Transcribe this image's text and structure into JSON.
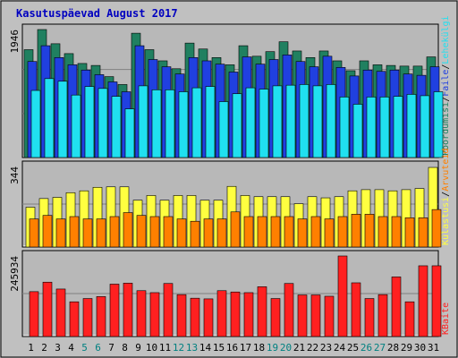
{
  "chart_data": {
    "type": "bar",
    "title": "Kasutuspäevad August 2017",
    "days": [
      "1",
      "2",
      "3",
      "4",
      "5",
      "6",
      "7",
      "8",
      "9",
      "10",
      "11",
      "12",
      "13",
      "14",
      "15",
      "16",
      "17",
      "18",
      "19",
      "20",
      "21",
      "22",
      "23",
      "24",
      "25",
      "26",
      "27",
      "28",
      "29",
      "30",
      "31"
    ],
    "weekend_days": [
      "5",
      "6",
      "12",
      "13",
      "19",
      "20",
      "26",
      "27"
    ],
    "colors": {
      "background": "#c0c0c0",
      "plot_bg": "#b0b0b0",
      "title": "#0000c0",
      "weekday_label": "#000000",
      "weekend_label": "#008080",
      "visits": "#208060",
      "pages": "#2040e0",
      "files": "#20e0f0",
      "hits": "#ffff40",
      "sites": "#ff8000",
      "kbytes": "#ff2020"
    },
    "panels": [
      {
        "ymax_label": "1946",
        "ymax": 1946,
        "legend": [
          {
            "text": "Pöördumisi",
            "color": "#208060"
          },
          {
            "text": "/",
            "color": "#000000"
          },
          {
            "text": "Faile",
            "color": "#2040e0"
          },
          {
            "text": "/",
            "color": "#000000"
          },
          {
            "text": "Lehekülgi",
            "color": "#20e0f0"
          }
        ],
        "series": [
          {
            "name": "Pöördumisi",
            "color": "#208060",
            "values": [
              1640,
              1946,
              1730,
              1580,
              1430,
              1400,
              1230,
              1110,
              1890,
              1640,
              1470,
              1350,
              1740,
              1650,
              1520,
              1410,
              1700,
              1540,
              1610,
              1760,
              1620,
              1520,
              1620,
              1470,
              1320,
              1470,
              1410,
              1400,
              1390,
              1390,
              1530
            ]
          },
          {
            "name": "Faile",
            "color": "#2040e0",
            "values": [
              1460,
              1700,
              1520,
              1410,
              1330,
              1260,
              1150,
              1000,
              1700,
              1490,
              1380,
              1270,
              1520,
              1470,
              1420,
              1300,
              1530,
              1420,
              1490,
              1560,
              1460,
              1380,
              1540,
              1370,
              1240,
              1330,
              1310,
              1330,
              1270,
              1250,
              1380
            ]
          },
          {
            "name": "Lehekülgi",
            "color": "#20e0f0",
            "values": [
              1020,
              1200,
              1160,
              950,
              1080,
              1050,
              930,
              740,
              1090,
              1030,
              1030,
              1000,
              1060,
              1080,
              850,
              970,
              1060,
              1040,
              1090,
              1100,
              1110,
              1090,
              1110,
              920,
              810,
              920,
              920,
              930,
              960,
              940,
              1000
            ]
          }
        ]
      },
      {
        "ymax_label": "344",
        "ymax": 344,
        "legend": [
          {
            "text": "Külastusi",
            "color": "#ffff40"
          },
          {
            "text": "/",
            "color": "#000000"
          },
          {
            "text": "Arvuteid",
            "color": "#ff8000"
          }
        ],
        "series": [
          {
            "name": "Külastusi",
            "color": "#ffff40",
            "values": [
              170,
              207,
              212,
              232,
              240,
              255,
              257,
              257,
              200,
              220,
              200,
              220,
              220,
              200,
              200,
              259,
              220,
              215,
              215,
              215,
              185,
              215,
              210,
              215,
              240,
              245,
              245,
              240,
              245,
              250,
              340
            ]
          },
          {
            "name": "Arvuteid",
            "color": "#ff8000",
            "values": [
              120,
              135,
              120,
              130,
              120,
              120,
              130,
              147,
              135,
              130,
              130,
              120,
              110,
              120,
              120,
              150,
              130,
              130,
              130,
              130,
              120,
              130,
              120,
              130,
              140,
              140,
              130,
              130,
              125,
              125,
              160
            ]
          }
        ]
      },
      {
        "ymax_label": "245934",
        "ymax": 245934,
        "legend": [
          {
            "text": "KBaite",
            "color": "#ff2020"
          }
        ],
        "series": [
          {
            "name": "KBaite",
            "color": "#ff2020",
            "values": [
              137000,
              166000,
              145000,
              106000,
              116000,
              122000,
              160000,
              163000,
              140000,
              134000,
              162000,
              128000,
              117000,
              115000,
              140000,
              136000,
              134000,
              152000,
              116000,
              162000,
              127000,
              127000,
              123000,
              245934,
              164000,
              116000,
              128000,
              182000,
              106000,
              216000,
              216000
            ]
          }
        ]
      }
    ],
    "xlabel": "",
    "ylabel": "",
    "grid": true,
    "legend_placement": "right"
  }
}
